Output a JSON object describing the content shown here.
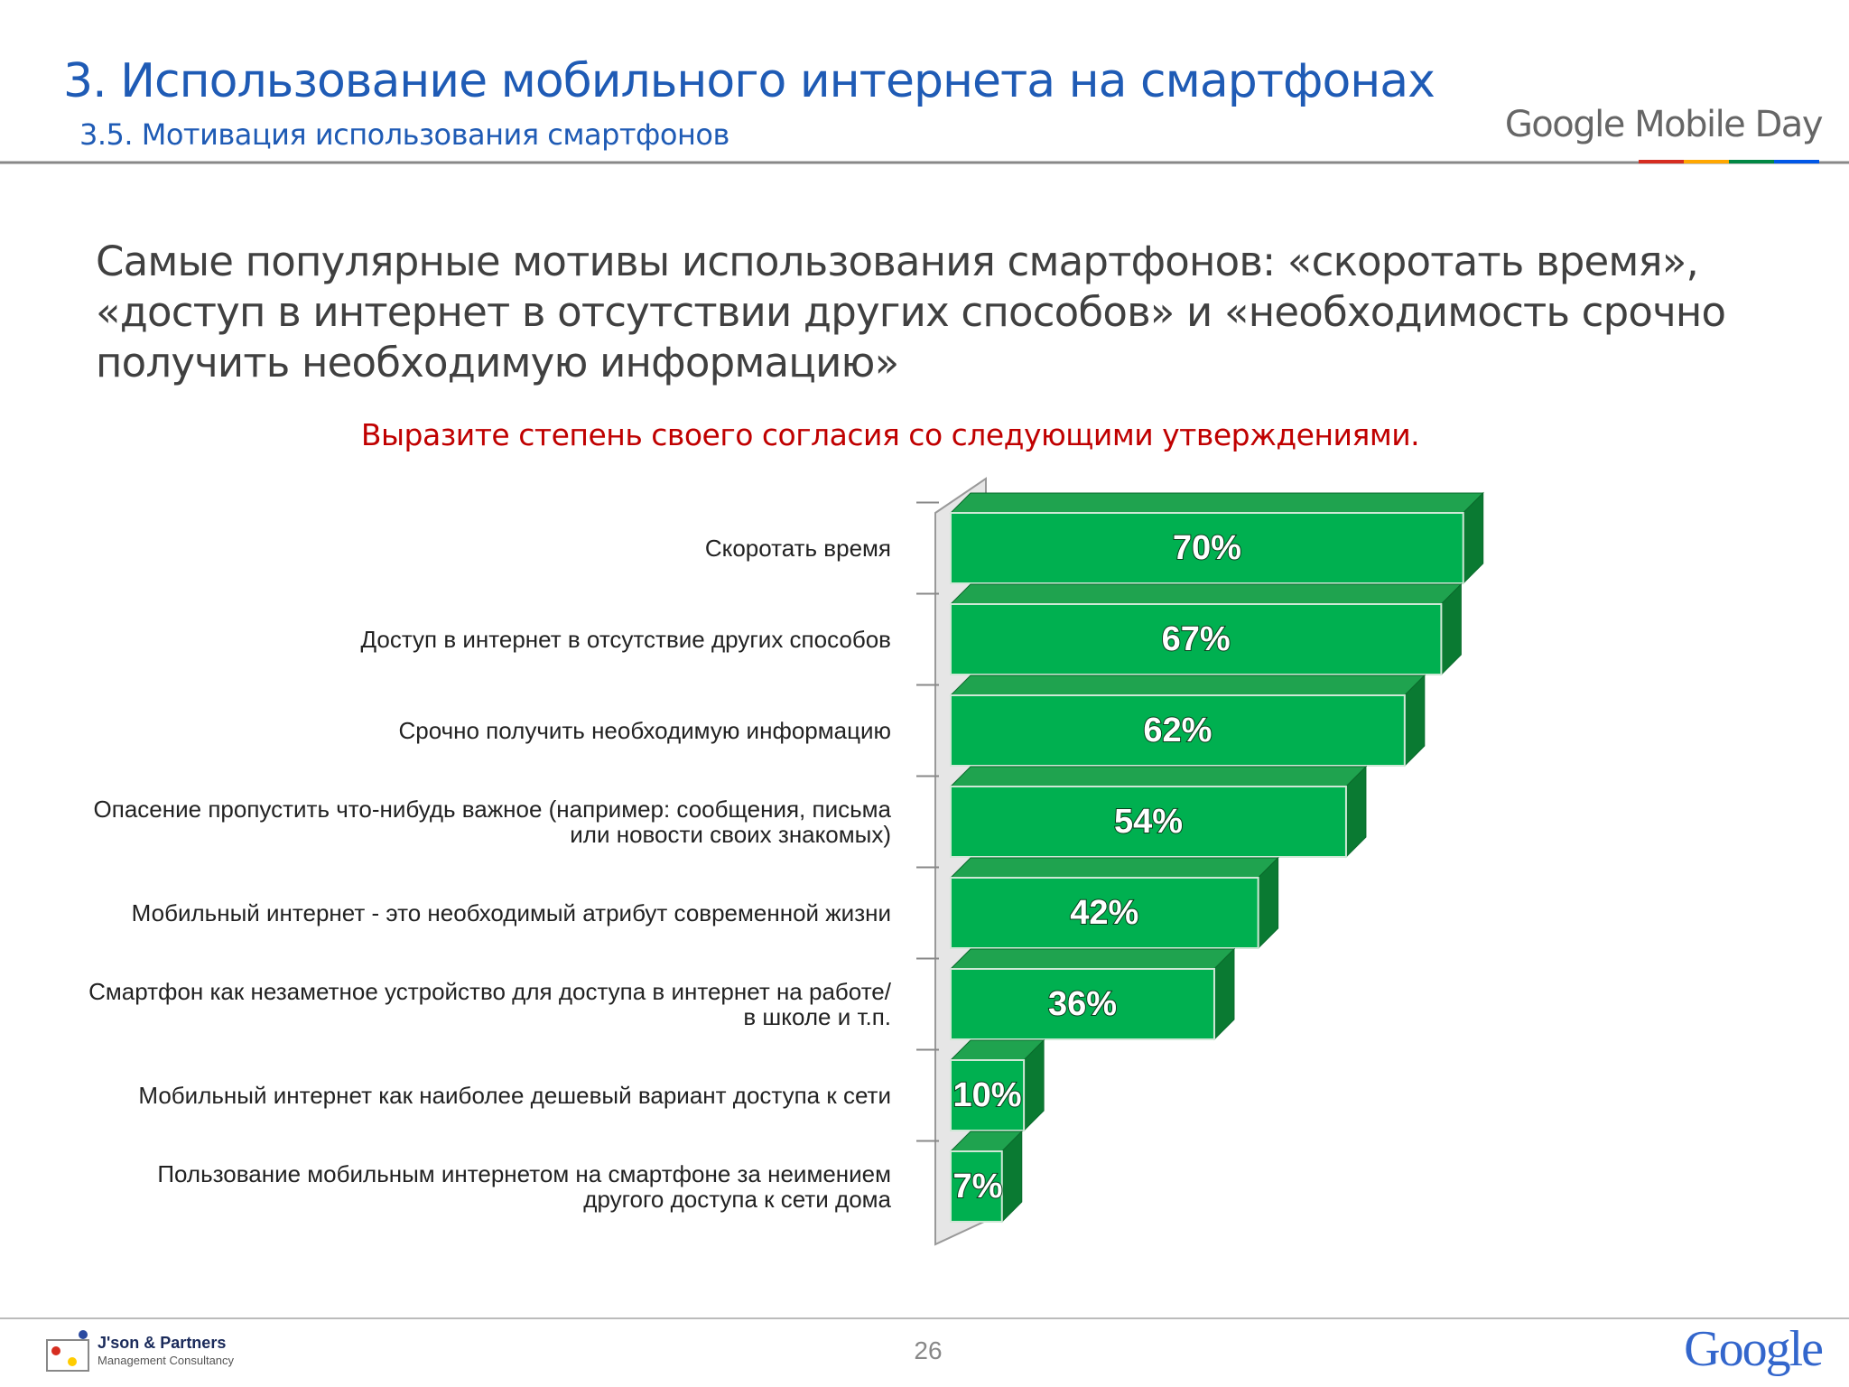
{
  "header": {
    "title": "3. Использование мобильного интернета на смартфонах",
    "subtitle": "3.5. Мотивация использования смартфонов",
    "brand": "Google Mobile Day"
  },
  "headline": "Самые популярные мотивы использования смартфонов: «скоротать время», «доступ в интернет в отсутствии других способов» и «необходимость срочно получить необходимую информацию»",
  "chart_data": {
    "type": "bar3d",
    "title": "Выразите степень своего согласия со следующими утверждениями.",
    "categories": [
      "Скоротать время",
      "Доступ в интернет в отсутствие других способов",
      "Срочно получить необходимую информацию",
      "Опасение пропустить что-нибудь важное (например: сообщения, письма или новости своих знакомых)",
      "Мобильный интернет - это необходимый атрибут современной жизни",
      "Смартфон как незаметное устройство для доступа в интернет на работе/в школе и т.п.",
      "Мобильный интернет как наиболее дешевый вариант доступа к сети",
      "Пользование мобильным интернетом на смартфоне за неимением другого доступа к сети дома"
    ],
    "values": [
      70,
      67,
      62,
      54,
      42,
      36,
      10,
      7
    ],
    "value_labels": [
      "70%",
      "67%",
      "62%",
      "54%",
      "42%",
      "36%",
      "10%",
      "7%"
    ],
    "color": "#00b050"
  },
  "footer": {
    "company": "J'son & Partners",
    "company_sub": "Management Consultancy",
    "page": "26",
    "logo": "Google"
  }
}
